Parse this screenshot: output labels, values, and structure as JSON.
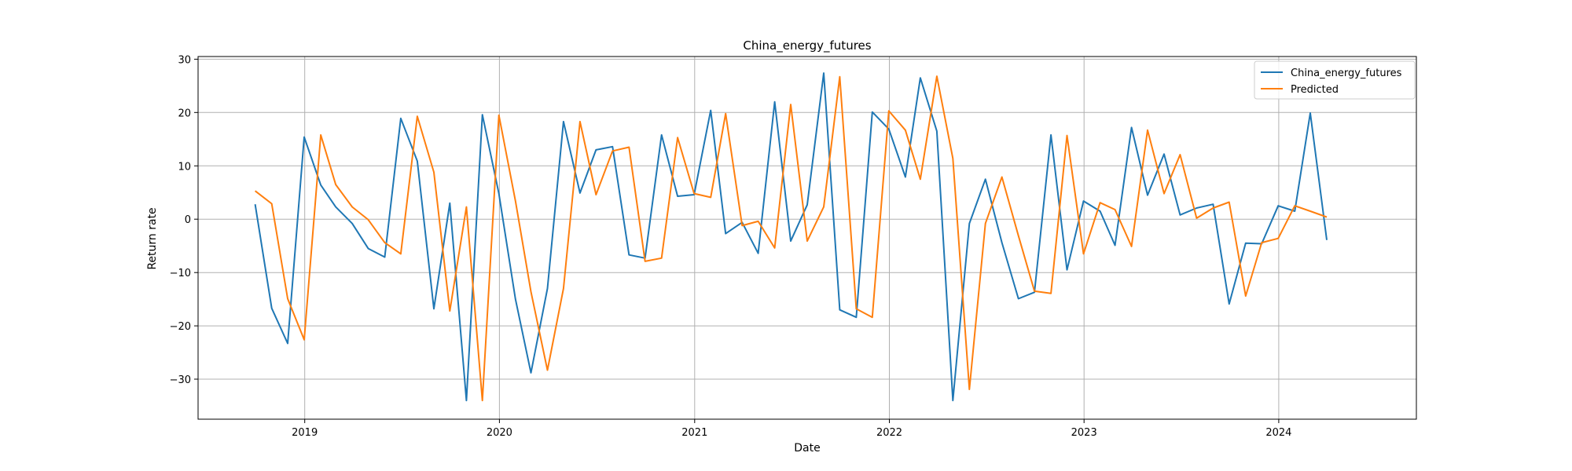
{
  "chart_data": {
    "type": "line",
    "title": "China_energy_futures",
    "xlabel": "Date",
    "ylabel": "Return rate",
    "xlim": [
      "2018-06-15",
      "2024-09-15"
    ],
    "ylim": [
      -37.5,
      30.5
    ],
    "x_ticks": [
      "2019-01-01",
      "2020-01-01",
      "2021-01-01",
      "2022-01-01",
      "2023-01-01",
      "2024-01-01"
    ],
    "x_tick_labels": [
      "2019",
      "2020",
      "2021",
      "2022",
      "2023",
      "2024"
    ],
    "y_ticks": [
      30,
      20,
      10,
      0,
      -10,
      -20,
      -30
    ],
    "grid": true,
    "legend_position": "top-right",
    "colors": {
      "China_energy_futures": "#1f77b4",
      "Predicted": "#ff7f0e",
      "grid": "#b0b0b0"
    },
    "series": [
      {
        "name": "China_energy_futures",
        "x": [
          "2018-09-30",
          "2018-10-31",
          "2018-11-30",
          "2018-12-31",
          "2019-01-31",
          "2019-02-28",
          "2019-03-31",
          "2019-04-30",
          "2019-05-31",
          "2019-06-30",
          "2019-07-31",
          "2019-08-31",
          "2019-09-30",
          "2019-10-31",
          "2019-11-30",
          "2019-12-31",
          "2020-01-31",
          "2020-02-29",
          "2020-03-31",
          "2020-04-30",
          "2020-05-31",
          "2020-06-30",
          "2020-07-31",
          "2020-08-31",
          "2020-09-30",
          "2020-10-31",
          "2020-11-30",
          "2020-12-31",
          "2021-01-31",
          "2021-02-28",
          "2021-03-31",
          "2021-04-30",
          "2021-05-31",
          "2021-06-30",
          "2021-07-31",
          "2021-08-31",
          "2021-09-30",
          "2021-10-31",
          "2021-11-30",
          "2021-12-31",
          "2022-01-31",
          "2022-02-28",
          "2022-03-31",
          "2022-04-30",
          "2022-05-31",
          "2022-06-30",
          "2022-07-31",
          "2022-08-31",
          "2022-09-30",
          "2022-10-31",
          "2022-11-30",
          "2022-12-31",
          "2023-01-31",
          "2023-02-28",
          "2023-03-31",
          "2023-04-30",
          "2023-05-31",
          "2023-06-30",
          "2023-07-31",
          "2023-08-31",
          "2023-09-30",
          "2023-10-31",
          "2023-11-30",
          "2023-12-31",
          "2024-01-31",
          "2024-02-29",
          "2024-03-31"
        ],
        "y": [
          2.8,
          -16.7,
          -23.3,
          15.4,
          6.4,
          2.3,
          -0.8,
          -5.5,
          -7.1,
          18.9,
          10.9,
          -16.8,
          3.0,
          -34.0,
          19.6,
          4.8,
          -15.0,
          -28.8,
          -13.0,
          18.3,
          4.9,
          13.0,
          13.6,
          -6.7,
          -7.3,
          15.8,
          4.3,
          4.6,
          20.4,
          -2.7,
          -0.6,
          -6.4,
          22.0,
          -4.1,
          2.7,
          27.4,
          -17.0,
          -18.4,
          20.1,
          16.9,
          7.9,
          26.5,
          16.5,
          -34.0,
          -0.8,
          7.5,
          -4.4,
          -14.9,
          -13.7,
          15.8,
          -9.5,
          3.4,
          1.5,
          -4.9,
          17.2,
          4.5,
          12.2,
          0.8,
          2.1,
          2.8,
          -15.9,
          -4.5,
          -4.6,
          2.5,
          1.5,
          19.9,
          -3.9
        ]
      },
      {
        "name": "Predicted",
        "x": [
          "2018-09-30",
          "2018-10-31",
          "2018-11-30",
          "2018-12-31",
          "2019-01-31",
          "2019-02-28",
          "2019-03-31",
          "2019-04-30",
          "2019-05-31",
          "2019-06-30",
          "2019-07-31",
          "2019-08-31",
          "2019-09-30",
          "2019-10-31",
          "2019-11-30",
          "2019-12-31",
          "2020-01-31",
          "2020-02-29",
          "2020-03-31",
          "2020-04-30",
          "2020-05-31",
          "2020-06-30",
          "2020-07-31",
          "2020-08-31",
          "2020-09-30",
          "2020-10-31",
          "2020-11-30",
          "2020-12-31",
          "2021-01-31",
          "2021-02-28",
          "2021-03-31",
          "2021-04-30",
          "2021-05-31",
          "2021-06-30",
          "2021-07-31",
          "2021-08-31",
          "2021-09-30",
          "2021-10-31",
          "2021-11-30",
          "2021-12-31",
          "2022-01-31",
          "2022-02-28",
          "2022-03-31",
          "2022-04-30",
          "2022-05-31",
          "2022-06-30",
          "2022-07-31",
          "2022-08-31",
          "2022-09-30",
          "2022-10-31",
          "2022-11-30",
          "2022-12-31",
          "2023-01-31",
          "2023-02-28",
          "2023-03-31",
          "2023-04-30",
          "2023-05-31",
          "2023-06-30",
          "2023-07-31",
          "2023-08-31",
          "2023-09-30",
          "2023-10-31",
          "2023-11-30",
          "2023-12-31",
          "2024-01-31",
          "2024-02-29",
          "2024-03-31"
        ],
        "y": [
          5.3,
          2.9,
          -14.9,
          -22.6,
          15.8,
          6.5,
          2.3,
          -0.1,
          -4.4,
          -6.5,
          19.3,
          8.8,
          -17.2,
          2.3,
          -34.0,
          19.5,
          3.4,
          -13.6,
          -28.3,
          -13.0,
          18.3,
          4.6,
          12.8,
          13.5,
          -7.9,
          -7.3,
          15.3,
          4.8,
          4.1,
          19.8,
          -1.2,
          -0.4,
          -5.4,
          21.5,
          -4.1,
          2.3,
          26.7,
          -16.8,
          -18.4,
          20.3,
          16.7,
          7.5,
          26.8,
          11.4,
          -31.9,
          -0.8,
          7.9,
          -3.1,
          -13.5,
          -13.9,
          15.7,
          -6.5,
          3.1,
          1.8,
          -5.1,
          16.7,
          4.8,
          12.1,
          0.2,
          2.1,
          3.2,
          -14.4,
          -4.4,
          -3.6,
          2.5,
          1.5,
          0.4
        ]
      }
    ]
  }
}
